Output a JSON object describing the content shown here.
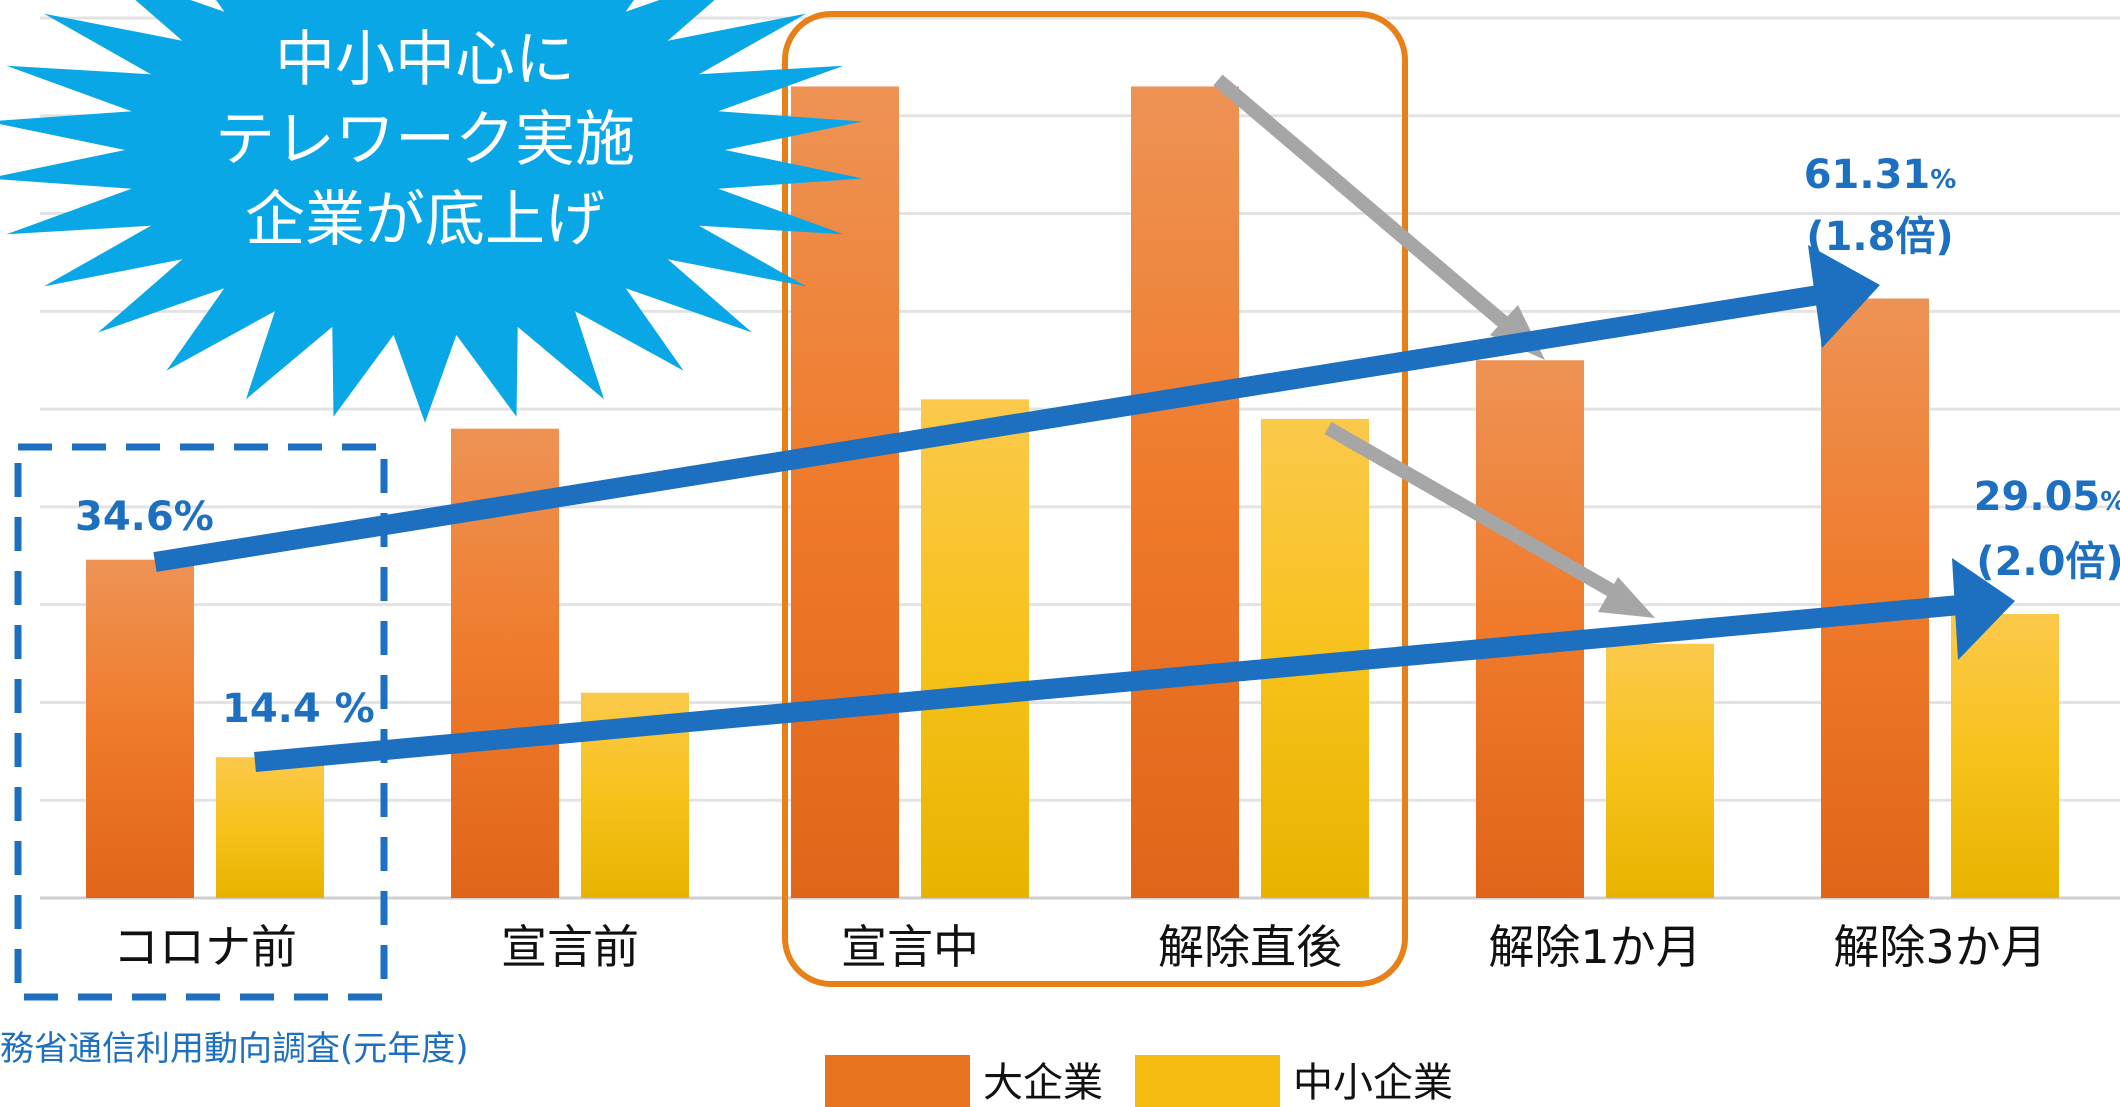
{
  "chart_data": {
    "type": "bar",
    "categories": [
      "コロナ前",
      "宣言前",
      "宣言中",
      "解除直後",
      "解除1か月",
      "解除3か月"
    ],
    "series": [
      {
        "name": "大企業",
        "values": [
          34.6,
          48.0,
          83.0,
          83.0,
          55.0,
          61.31
        ]
      },
      {
        "name": "中小企業",
        "values": [
          14.4,
          21.0,
          51.0,
          49.0,
          26.0,
          29.05
        ]
      }
    ],
    "ylim": [
      0,
      90
    ],
    "grid": true,
    "legend_position": "bottom",
    "colors": {
      "large": "#e8731f",
      "small": "#f5bd12",
      "accent": "#1d6fbf",
      "highlight": "#e8801a",
      "burst": "#0aa7e6",
      "gray_arrow": "#a6a6a6"
    },
    "annotations": {
      "large_start": "34.6%",
      "small_start": "14.4 %",
      "large_end_value": "61.31",
      "large_end_unit": "%",
      "large_end_ratio": "(1.8倍)",
      "small_end_value": "29.05",
      "small_end_unit": "%",
      "small_end_ratio": "(2.0倍)"
    },
    "callout": [
      "中小中心に",
      "テレワーク実施",
      "企業が底上げ"
    ],
    "source": "務省通信利用動向調査(元年度)"
  }
}
